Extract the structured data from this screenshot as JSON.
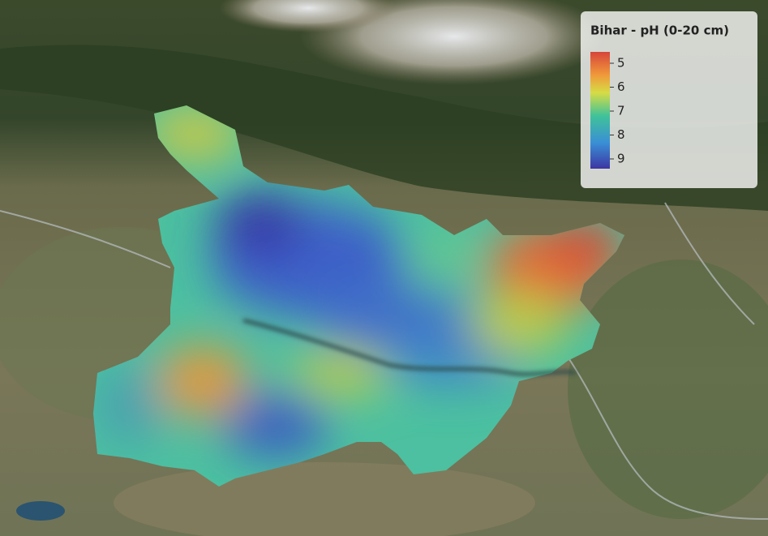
{
  "legend": {
    "title": "Bihar - pH (0-20 cm)",
    "ticks": [
      5,
      6,
      7,
      8,
      9
    ]
  }
}
